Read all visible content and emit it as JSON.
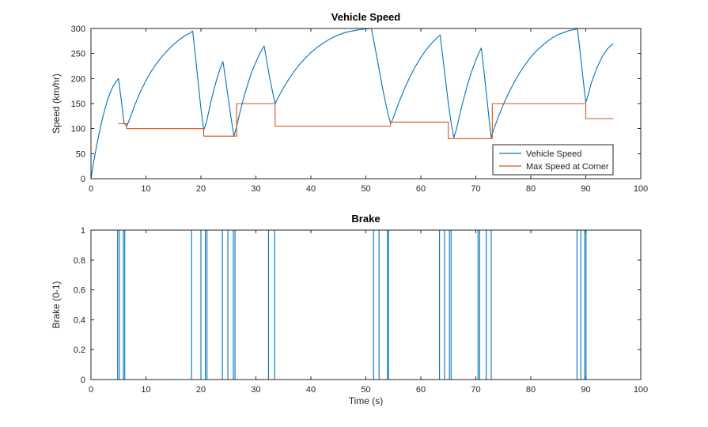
{
  "figure": {
    "background": "#ffffff",
    "axis_color": "#262626",
    "text_color": "#262626",
    "title_color": "#000000"
  },
  "chart_data": [
    {
      "type": "line",
      "title": "Vehicle Speed",
      "xlabel": "",
      "ylabel": "Speed (km/hr)",
      "xlim": [
        0,
        100
      ],
      "ylim": [
        0,
        300
      ],
      "xticks": [
        0,
        10,
        20,
        30,
        40,
        50,
        60,
        70,
        80,
        90,
        100
      ],
      "yticks": [
        0,
        50,
        100,
        150,
        200,
        250,
        300
      ],
      "grid": false,
      "box": true,
      "legend": {
        "position": "inside-lower-right",
        "entries": [
          "Vehicle Speed",
          "Max Speed at Corner"
        ]
      },
      "series": [
        {
          "name": "Vehicle Speed",
          "color": "#0072BD",
          "style": "line",
          "points": [
            [
              0,
              0
            ],
            [
              0.5,
              34
            ],
            [
              1,
              64
            ],
            [
              1.5,
              91
            ],
            [
              2,
              116
            ],
            [
              2.5,
              138
            ],
            [
              3,
              157
            ],
            [
              3.5,
              172
            ],
            [
              4,
              184
            ],
            [
              4.5,
              193
            ],
            [
              5,
              200
            ],
            [
              5.5,
              158
            ],
            [
              6,
              112
            ],
            [
              6.5,
              105
            ],
            [
              7,
              118
            ],
            [
              8,
              148
            ],
            [
              9,
              174
            ],
            [
              10,
              196
            ],
            [
              11,
              215
            ],
            [
              12,
              231
            ],
            [
              13,
              245
            ],
            [
              14,
              257
            ],
            [
              15,
              268
            ],
            [
              16,
              277
            ],
            [
              17,
              285
            ],
            [
              18,
              291
            ],
            [
              18.5,
              295
            ],
            [
              19,
              245
            ],
            [
              19.5,
              192
            ],
            [
              20,
              140
            ],
            [
              20.5,
              97
            ],
            [
              21,
              112
            ],
            [
              21.5,
              138
            ],
            [
              22,
              162
            ],
            [
              22.5,
              184
            ],
            [
              23,
              203
            ],
            [
              23.5,
              220
            ],
            [
              24,
              234
            ],
            [
              24.5,
              198
            ],
            [
              25,
              158
            ],
            [
              25.5,
              120
            ],
            [
              26,
              85
            ],
            [
              26.5,
              104
            ],
            [
              27,
              128
            ],
            [
              27.5,
              150
            ],
            [
              28,
              170
            ],
            [
              28.5,
              188
            ],
            [
              29,
              205
            ],
            [
              29.5,
              220
            ],
            [
              30,
              233
            ],
            [
              30.5,
              245
            ],
            [
              31,
              256
            ],
            [
              31.5,
              265
            ],
            [
              32,
              233
            ],
            [
              32.5,
              202
            ],
            [
              33,
              175
            ],
            [
              33.5,
              150
            ],
            [
              34,
              161
            ],
            [
              35,
              181
            ],
            [
              36,
              199
            ],
            [
              37,
              215
            ],
            [
              38,
              229
            ],
            [
              39,
              241
            ],
            [
              40,
              252
            ],
            [
              41,
              261
            ],
            [
              42,
              269
            ],
            [
              43,
              276
            ],
            [
              44,
              282
            ],
            [
              45,
              287
            ],
            [
              46,
              291
            ],
            [
              47,
              294
            ],
            [
              48,
              296
            ],
            [
              49,
              298
            ],
            [
              50,
              299
            ],
            [
              51,
              300
            ],
            [
              51.5,
              272
            ],
            [
              52,
              243
            ],
            [
              52.5,
              213
            ],
            [
              53,
              183
            ],
            [
              53.5,
              156
            ],
            [
              54,
              131
            ],
            [
              54.5,
              110
            ],
            [
              55,
              122
            ],
            [
              56,
              152
            ],
            [
              57,
              179
            ],
            [
              58,
              203
            ],
            [
              59,
              224
            ],
            [
              60,
              242
            ],
            [
              61,
              258
            ],
            [
              62,
              271
            ],
            [
              63,
              282
            ],
            [
              63.5,
              287
            ],
            [
              64,
              242
            ],
            [
              64.5,
              196
            ],
            [
              65,
              150
            ],
            [
              65.5,
              112
            ],
            [
              66,
              82
            ],
            [
              66.5,
              100
            ],
            [
              67,
              124
            ],
            [
              67.5,
              147
            ],
            [
              68,
              168
            ],
            [
              68.5,
              188
            ],
            [
              69,
              206
            ],
            [
              69.5,
              222
            ],
            [
              70,
              237
            ],
            [
              70.5,
              250
            ],
            [
              71,
              261
            ],
            [
              71.5,
              213
            ],
            [
              72,
              162
            ],
            [
              72.5,
              110
            ],
            [
              72.8,
              82
            ],
            [
              73,
              90
            ],
            [
              74,
              121
            ],
            [
              75,
              148
            ],
            [
              76,
              172
            ],
            [
              77,
              193
            ],
            [
              78,
              212
            ],
            [
              79,
              228
            ],
            [
              80,
              243
            ],
            [
              81,
              255
            ],
            [
              82,
              265
            ],
            [
              83,
              274
            ],
            [
              84,
              282
            ],
            [
              85,
              288
            ],
            [
              86,
              292
            ],
            [
              87,
              296
            ],
            [
              88,
              298
            ],
            [
              88.5,
              299
            ],
            [
              89,
              250
            ],
            [
              89.5,
              200
            ],
            [
              90,
              152
            ],
            [
              90.5,
              170
            ],
            [
              91,
              191
            ],
            [
              92,
              221
            ],
            [
              93,
              244
            ],
            [
              94,
              260
            ],
            [
              95,
              270
            ]
          ]
        },
        {
          "name": "Max Speed at Corner",
          "color": "#D95319",
          "style": "step",
          "points": [
            [
              5,
              110
            ],
            [
              6.5,
              110
            ],
            [
              6.5,
              100
            ],
            [
              20.5,
              100
            ],
            [
              20.5,
              85
            ],
            [
              26.5,
              85
            ],
            [
              26.5,
              150
            ],
            [
              33.5,
              150
            ],
            [
              33.5,
              105
            ],
            [
              54.5,
              105
            ],
            [
              54.5,
              113
            ],
            [
              65,
              113
            ],
            [
              65,
              80
            ],
            [
              73,
              80
            ],
            [
              73,
              150
            ],
            [
              90,
              150
            ],
            [
              90,
              120
            ],
            [
              95,
              120
            ]
          ]
        }
      ]
    },
    {
      "type": "line",
      "title": "Brake",
      "xlabel": "Time (s)",
      "ylabel": "Brake (0-1)",
      "xlim": [
        0,
        100
      ],
      "ylim": [
        0,
        1
      ],
      "xticks": [
        0,
        10,
        20,
        30,
        40,
        50,
        60,
        70,
        80,
        90,
        100
      ],
      "yticks": [
        0,
        0.2,
        0.4,
        0.6,
        0.8,
        1
      ],
      "grid": false,
      "box": true,
      "series": [
        {
          "name": "Brake",
          "color": "#0072BD",
          "style": "pulse",
          "x_start": 0,
          "x_end": 95,
          "low": 0,
          "high": 1,
          "pulses": [
            [
              4.85,
              5.15
            ],
            [
              5.9,
              6.15
            ],
            [
              18.3,
              20
            ],
            [
              20.8,
              21.1
            ],
            [
              23.9,
              24.9
            ],
            [
              25.9,
              26.2
            ],
            [
              32.3,
              33.4
            ],
            [
              51.4,
              52.4
            ],
            [
              53.9,
              54.15
            ],
            [
              63.4,
              64.3
            ],
            [
              65.2,
              65.5
            ],
            [
              70.4,
              70.7
            ],
            [
              71.9,
              72.8
            ],
            [
              88.4,
              89.1
            ],
            [
              89.8,
              90.05
            ]
          ]
        }
      ]
    }
  ]
}
